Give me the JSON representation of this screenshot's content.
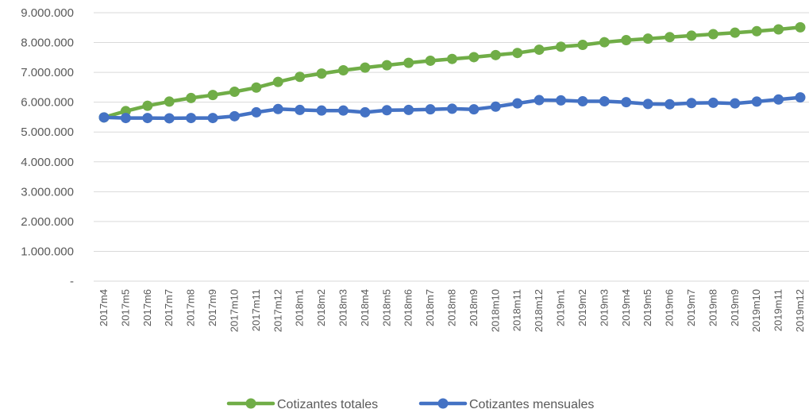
{
  "chart_data": {
    "type": "line",
    "categories": [
      "2017m4",
      "2017m5",
      "2017m6",
      "2017m7",
      "2017m8",
      "2017m9",
      "2017m10",
      "2017m11",
      "2017m12",
      "2018m1",
      "2018m2",
      "2018m3",
      "2018m4",
      "2018m5",
      "2018m6",
      "2018m7",
      "2018m8",
      "2018m9",
      "2018m10",
      "2018m11",
      "2018m12",
      "2019m1",
      "2019m2",
      "2019m3",
      "2019m4",
      "2019m5",
      "2019m6",
      "2019m7",
      "2019m8",
      "2019m9",
      "2019m10",
      "2019m11",
      "2019m12"
    ],
    "series": [
      {
        "name": "Cotizantes totales",
        "color": "#70ad47",
        "values": [
          5490000,
          5700000,
          5880000,
          6020000,
          6140000,
          6240000,
          6350000,
          6490000,
          6680000,
          6850000,
          6960000,
          7070000,
          7160000,
          7240000,
          7320000,
          7390000,
          7450000,
          7510000,
          7580000,
          7650000,
          7760000,
          7860000,
          7920000,
          8010000,
          8080000,
          8130000,
          8180000,
          8230000,
          8280000,
          8330000,
          8380000,
          8440000,
          8510000
        ]
      },
      {
        "name": "Cotizantes mensuales",
        "color": "#4472c4",
        "values": [
          5490000,
          5470000,
          5470000,
          5460000,
          5470000,
          5470000,
          5530000,
          5660000,
          5770000,
          5740000,
          5720000,
          5720000,
          5660000,
          5730000,
          5740000,
          5760000,
          5780000,
          5760000,
          5850000,
          5960000,
          6070000,
          6060000,
          6030000,
          6030000,
          6000000,
          5940000,
          5930000,
          5970000,
          5980000,
          5960000,
          6020000,
          6090000,
          6160000
        ]
      }
    ],
    "yticks": [
      "-",
      "1.000.000",
      "2.000.000",
      "3.000.000",
      "4.000.000",
      "5.000.000",
      "6.000.000",
      "7.000.000",
      "8.000.000",
      "9.000.000"
    ],
    "ylim": [
      0,
      9000000
    ],
    "grid": true,
    "legend_position": "bottom",
    "title": "",
    "xlabel": "",
    "ylabel": ""
  }
}
